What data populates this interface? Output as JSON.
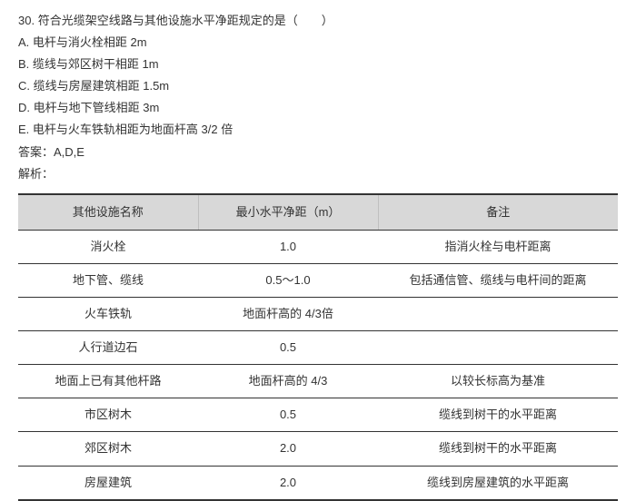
{
  "question": {
    "number": "30.",
    "stem": "符合光缆架空线路与其他设施水平净距规定的是（　　）",
    "options": [
      {
        "letter": "A.",
        "text": "电杆与消火栓相距 2m"
      },
      {
        "letter": "B.",
        "text": "缆线与郊区树干相距 1m"
      },
      {
        "letter": "C.",
        "text": "缆线与房屋建筑相距 1.5m"
      },
      {
        "letter": "D.",
        "text": "电杆与地下管线相距 3m"
      },
      {
        "letter": "E.",
        "text": "电杆与火车铁轨相距为地面杆高 3/2 倍"
      }
    ],
    "answer_label": "答案：",
    "answer_value": "A,D,E",
    "analysis_label": "解析："
  },
  "table": {
    "headers": [
      "其他设施名称",
      "最小水平净距（m）",
      "备注"
    ],
    "rows": [
      [
        "消火栓",
        "1.0",
        "指消火栓与电杆距离"
      ],
      [
        "地下管、缆线",
        "0.5～1.0",
        "包括通信管、缆线与电杆间的距离"
      ],
      [
        "火车铁轨",
        "地面杆高的 4/3倍",
        ""
      ],
      [
        "人行道边石",
        "0.5",
        ""
      ],
      [
        "地面上已有其他杆路",
        "地面杆高的 4/3",
        "以较长标高为基准"
      ],
      [
        "市区树木",
        "0.5",
        "缆线到树干的水平距离"
      ],
      [
        "郊区树木",
        "2.0",
        "缆线到树干的水平距离"
      ],
      [
        "房屋建筑",
        "2.0",
        "缆线到房屋建筑的水平距离"
      ]
    ]
  }
}
